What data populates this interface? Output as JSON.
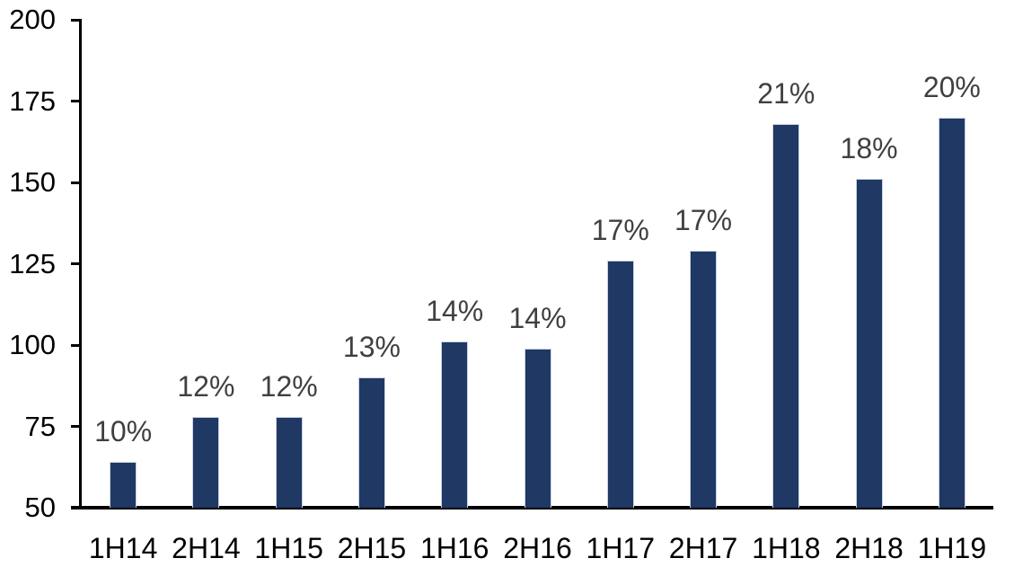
{
  "chart_data": {
    "type": "bar",
    "title": "",
    "xlabel": "",
    "ylabel": "",
    "categories": [
      "1H14",
      "2H14",
      "1H15",
      "2H15",
      "1H16",
      "2H16",
      "1H17",
      "2H17",
      "1H18",
      "2H18",
      "1H19"
    ],
    "values": [
      64,
      78,
      78,
      90,
      101,
      99,
      126,
      129,
      168,
      151,
      170
    ],
    "data_labels": [
      "10%",
      "12%",
      "12%",
      "13%",
      "14%",
      "14%",
      "17%",
      "17%",
      "21%",
      "18%",
      "20%"
    ],
    "ylim": [
      50,
      200
    ],
    "yticks": [
      50,
      75,
      100,
      125,
      150,
      175,
      200
    ],
    "grid": false,
    "legend": false,
    "colors": {
      "bar_fill": "#1F3864",
      "bar_border": "#C9D3E3",
      "data_label_text": "#404040",
      "axis_text": "#000000",
      "axis_line": "#000000",
      "background": "#FFFFFF"
    }
  }
}
